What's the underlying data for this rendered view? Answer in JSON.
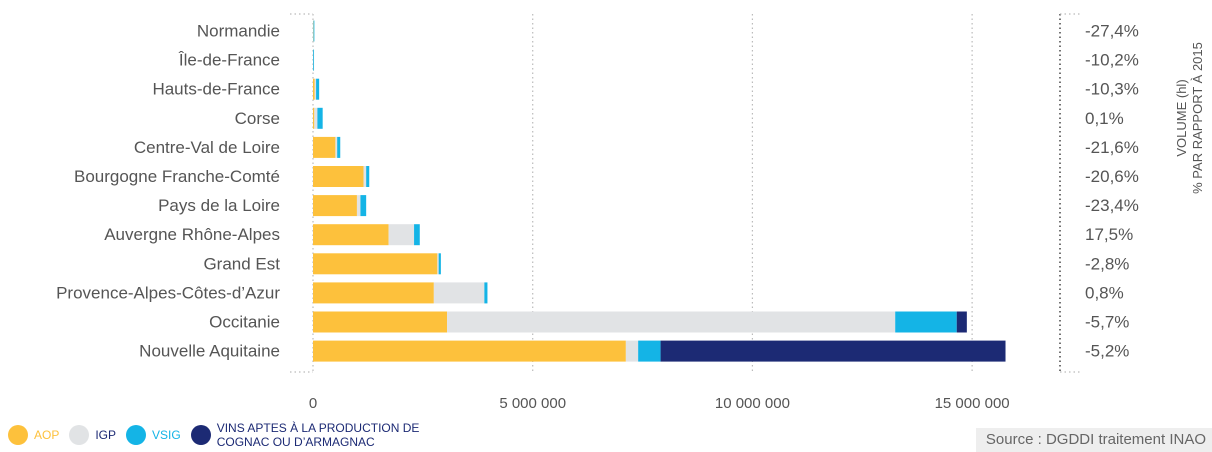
{
  "colors": {
    "aop": "#fdc13c",
    "igp": "#e1e3e5",
    "vsig": "#14b4e6",
    "cognac": "#1c2a74",
    "text": "#555555",
    "grid": "#bbbbbb"
  },
  "chart_data": {
    "type": "bar",
    "orientation": "horizontal",
    "stacked": true,
    "categories": [
      "Normandie",
      "Île-de-France",
      "Hauts-de-France",
      "Corse",
      "Centre-Val de Loire",
      "Bourgogne Franche-Comté",
      "Pays de la Loire",
      "Auvergne Rhône-Alpes",
      "Grand Est",
      "Provence-Alpes-Côtes-d’Azur",
      "Occitanie",
      "Nouvelle Aquitaine"
    ],
    "series": [
      {
        "key": "aop",
        "name": "AOP",
        "values": [
          5000,
          2000,
          40000,
          30000,
          510000,
          1150000,
          1000000,
          1720000,
          2830000,
          2750000,
          3050000,
          7120000
        ]
      },
      {
        "key": "igp",
        "name": "IGP",
        "values": [
          8000,
          3000,
          30000,
          70000,
          40000,
          60000,
          80000,
          580000,
          30000,
          1150000,
          10200000,
          280000
        ]
      },
      {
        "key": "vsig",
        "name": "VSIG",
        "values": [
          7000,
          5000,
          70000,
          120000,
          70000,
          70000,
          130000,
          130000,
          50000,
          70000,
          1400000,
          510000
        ]
      },
      {
        "key": "cognac",
        "name": "VINS APTES À LA PRODUCTION DE COGNAC OU D’ARMAGNAC",
        "values": [
          0,
          0,
          0,
          0,
          0,
          0,
          0,
          0,
          0,
          0,
          230000,
          7850000
        ]
      }
    ],
    "change_labels": [
      "-27,4%",
      "-10,2%",
      "-10,3%",
      "0,1%",
      "-21,6%",
      "-20,6%",
      "-23,4%",
      "17,5%",
      "-2,8%",
      "0,8%",
      "-5,7%",
      "-5,2%"
    ],
    "xlim": [
      0,
      17000000
    ],
    "xticks": [
      0,
      5000000,
      10000000,
      15000000
    ],
    "xtick_labels": [
      "0",
      "5 000 000",
      "10 000 000",
      "15 000 000"
    ],
    "right_axis_title_line1": "VOLUME (hl)",
    "right_axis_title_line2": "% PAR RAPPORT À 2015",
    "grid": true,
    "legend_position": "bottom-left"
  },
  "legend": {
    "aop": "AOP",
    "igp": "IGP",
    "vsig": "VSIG",
    "cognac": "VINS APTES À LA PRODUCTION DE COGNAC OU D’ARMAGNAC"
  },
  "source": "Source : DGDDI traitement INAO"
}
